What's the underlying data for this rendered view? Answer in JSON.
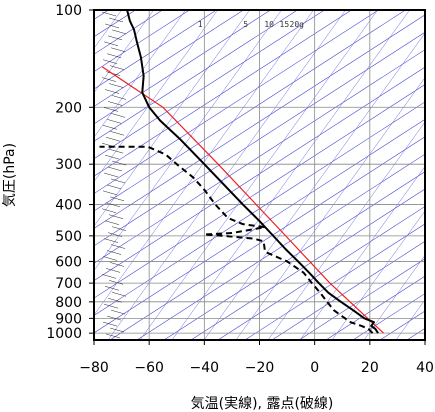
{
  "chart_data": {
    "type": "line",
    "title": "",
    "xlabel": "気温(実線), 露点(破線)",
    "ylabel": "気圧(hPa)",
    "x_axis": {
      "range": [
        -80,
        40
      ],
      "ticks": [
        -80,
        -60,
        -40,
        -20,
        0,
        20,
        40
      ],
      "tick_labels": [
        "−80",
        "−60",
        "−40",
        "−20",
        "0",
        "20",
        "40"
      ]
    },
    "y_axis": {
      "scale": "log",
      "range": [
        1050,
        100
      ],
      "ticks": [
        1000,
        900,
        800,
        700,
        600,
        500,
        400,
        300,
        200,
        100
      ],
      "tick_labels": [
        "1000",
        "900",
        "800",
        "700",
        "600",
        "500",
        "400",
        "300",
        "200",
        "100"
      ]
    },
    "grid": true,
    "mixing_ratio_labels": [
      "1",
      "5",
      "10",
      "15",
      "20g"
    ],
    "series": [
      {
        "name": "気温",
        "style": "solid",
        "color": "#000000",
        "points": [
          [
            1000,
            23.0
          ],
          [
            970,
            22.0
          ],
          [
            950,
            20.5
          ],
          [
            925,
            21.5
          ],
          [
            900,
            18.0
          ],
          [
            850,
            14.0
          ],
          [
            800,
            9.5
          ],
          [
            750,
            5.0
          ],
          [
            700,
            1.5
          ],
          [
            650,
            -2.0
          ],
          [
            600,
            -6.0
          ],
          [
            550,
            -10.5
          ],
          [
            500,
            -15.0
          ],
          [
            450,
            -20.0
          ],
          [
            400,
            -26.0
          ],
          [
            350,
            -32.5
          ],
          [
            300,
            -40.0
          ],
          [
            250,
            -49.0
          ],
          [
            220,
            -56.0
          ],
          [
            200,
            -60.0
          ],
          [
            180,
            -62.5
          ],
          [
            160,
            -62.0
          ],
          [
            140,
            -63.0
          ],
          [
            125,
            -64.5
          ],
          [
            115,
            -65.5
          ],
          [
            108,
            -67.0
          ],
          [
            104,
            -67.5
          ],
          [
            100,
            -68.0
          ]
        ]
      },
      {
        "name": "露点",
        "style": "dashed",
        "color": "#000000",
        "points": [
          [
            1000,
            21.0
          ],
          [
            970,
            19.5
          ],
          [
            950,
            17.0
          ],
          [
            925,
            13.0
          ],
          [
            900,
            11.0
          ],
          [
            850,
            7.0
          ],
          [
            800,
            4.5
          ],
          [
            750,
            2.0
          ],
          [
            700,
            -1.0
          ],
          [
            650,
            -4.0
          ],
          [
            600,
            -10.0
          ],
          [
            560,
            -18.0
          ],
          [
            520,
            -18.5
          ],
          [
            510,
            -22.0
          ],
          [
            500,
            -33.0
          ],
          [
            495,
            -40.0
          ],
          [
            490,
            -30.0
          ],
          [
            470,
            -18.0
          ],
          [
            460,
            -26.0
          ],
          [
            440,
            -31.5
          ],
          [
            400,
            -36.0
          ],
          [
            360,
            -40.0
          ],
          [
            330,
            -44.0
          ],
          [
            300,
            -50.0
          ],
          [
            280,
            -54.0
          ],
          [
            265,
            -60.5
          ],
          [
            265,
            -78.0
          ]
        ]
      }
    ],
    "reference_line": {
      "color": "#ee2222",
      "points": [
        [
          1000,
          25.0
        ],
        [
          700,
          5.5
        ],
        [
          500,
          -10.5
        ],
        [
          300,
          -35.0
        ],
        [
          200,
          -55.0
        ],
        [
          150,
          -77.0
        ]
      ]
    },
    "wind_barbs": {
      "count": 55,
      "x_start": -72.0,
      "x_end": -68.0
    }
  }
}
